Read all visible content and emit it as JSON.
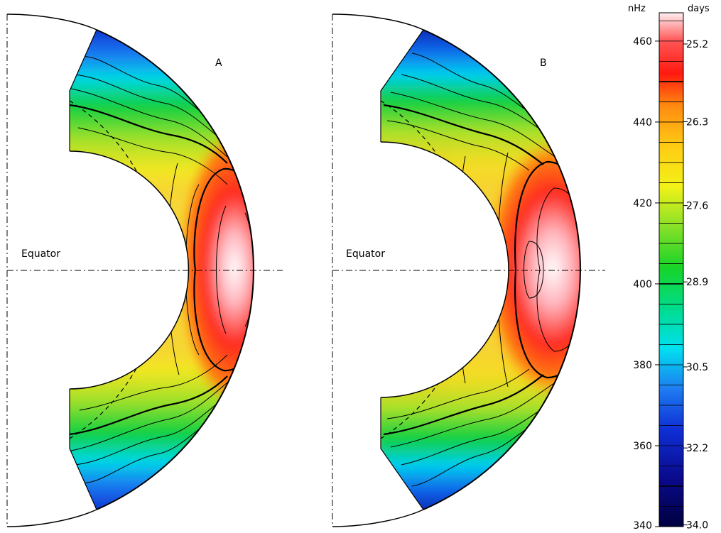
{
  "panels": [
    {
      "label": "A",
      "equator_label": "Equator"
    },
    {
      "label": "B",
      "equator_label": "Equator"
    }
  ],
  "colorbar": {
    "left_unit": "nHz",
    "right_unit": "days",
    "nhz_ticks": [
      "460",
      "440",
      "420",
      "400",
      "380",
      "360",
      "340"
    ],
    "days_ticks": [
      "25.2",
      "26.3",
      "27.6",
      "28.9",
      "30.5",
      "32.2",
      "34.0"
    ],
    "nhz_range": [
      340,
      467
    ],
    "stops": [
      {
        "v": 340,
        "color": "#000040"
      },
      {
        "v": 352,
        "color": "#0a0a8c"
      },
      {
        "v": 364,
        "color": "#0f2fd6"
      },
      {
        "v": 374,
        "color": "#1e7cf0"
      },
      {
        "v": 384,
        "color": "#00e0f0"
      },
      {
        "v": 394,
        "color": "#00dc8c"
      },
      {
        "v": 404,
        "color": "#18d428"
      },
      {
        "v": 414,
        "color": "#86e028"
      },
      {
        "v": 424,
        "color": "#f2f218"
      },
      {
        "v": 434,
        "color": "#ffcc14"
      },
      {
        "v": 444,
        "color": "#ff8a10"
      },
      {
        "v": 452,
        "color": "#ff1a10"
      },
      {
        "v": 460,
        "color": "#ff5555"
      },
      {
        "v": 467,
        "color": "#fff0f0"
      }
    ]
  }
}
